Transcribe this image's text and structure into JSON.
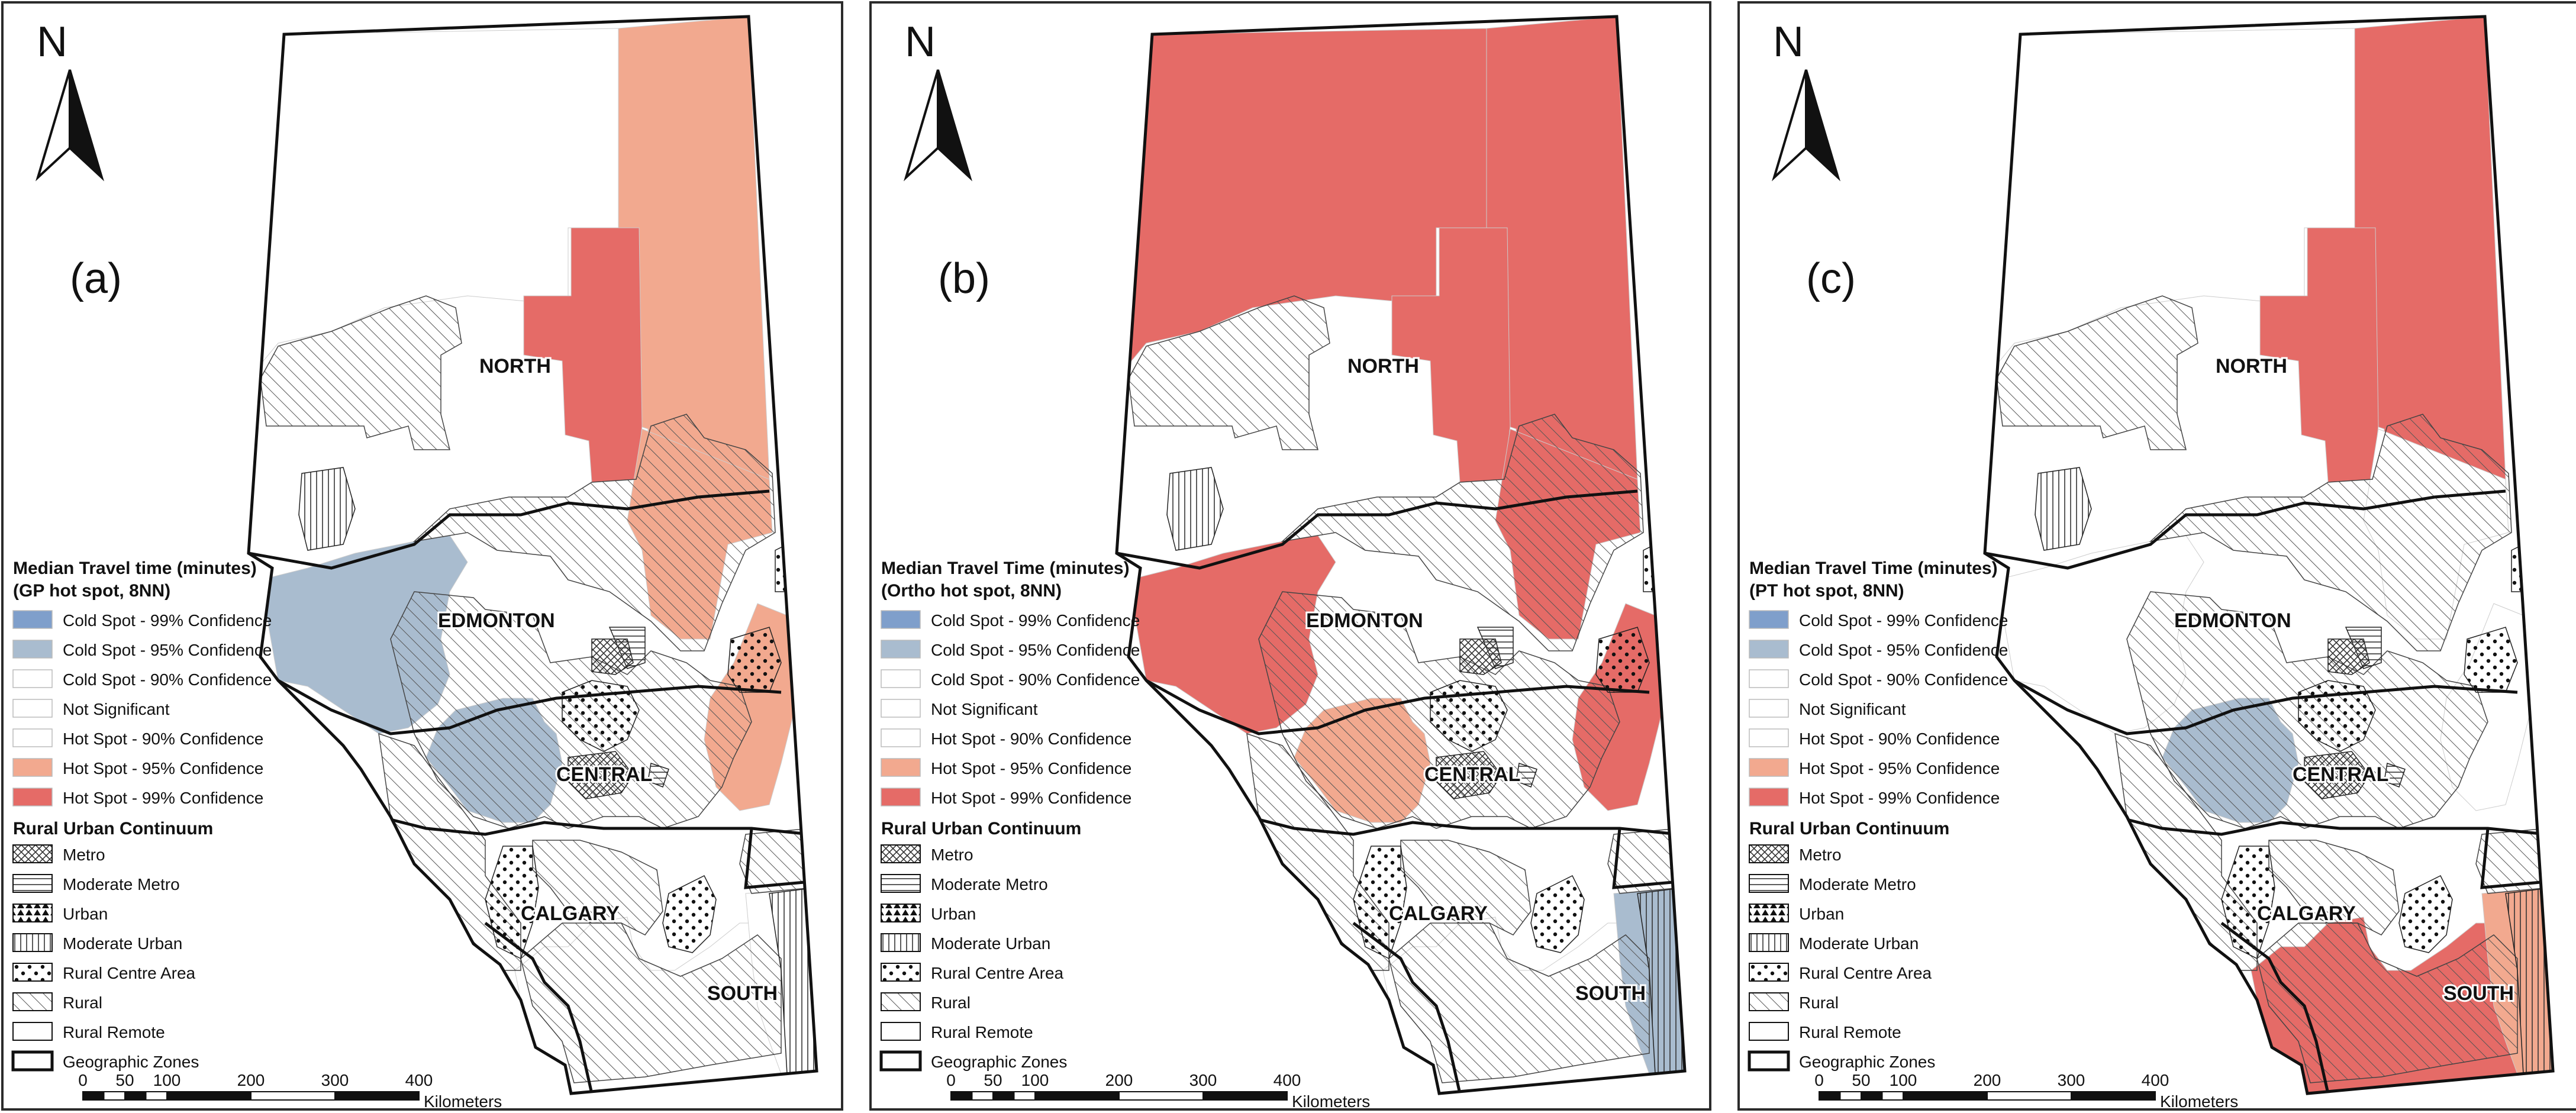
{
  "colors": {
    "cold99": "#7f9fcb",
    "cold95": "#a9bccf",
    "cold90": "#ffffff",
    "notsig": "#ffffff",
    "hot90": "#ffffff",
    "hot95": "#f2a98f",
    "hot99": "#e56b67",
    "rural_hatch": "#555555",
    "outline": "#111111",
    "panel_border": "#2b2b2b"
  },
  "panels": [
    {
      "label": "(a)",
      "north": "N",
      "zones": [
        "NORTH",
        "EDMONTON",
        "CENTRAL",
        "CALGARY",
        "SOUTH"
      ],
      "legend_title_1": "Median Travel time (minutes)",
      "legend_title_2": "(GP hot spot, 8NN)",
      "hotspot_items": [
        "Cold Spot - 99% Confidence",
        "Cold Spot - 95% Confidence",
        "Cold Spot - 90% Confidence",
        "Not Significant",
        "Hot Spot - 90% Confidence",
        "Hot Spot - 95% Confidence",
        "Hot Spot - 99% Confidence"
      ],
      "ruc_title": "Rural Urban Continuum",
      "ruc_items": [
        "Metro",
        "Moderate Metro",
        "Urban",
        "Moderate Urban",
        "Rural Centre Area",
        "Rural",
        "Rural Remote",
        "Geographic Zones"
      ],
      "scale_ticks": [
        "0",
        "50",
        "100",
        "200",
        "300",
        "400"
      ],
      "scale_unit": "Kilometers",
      "region_classes": {
        "NW": "notsig",
        "NE": "hot95",
        "NMID": "hot99",
        "NS": "hot95",
        "W": "cold95",
        "WC": "cold95",
        "CE": "hot95",
        "SE": "notsig",
        "SS": "notsig"
      }
    },
    {
      "label": "(b)",
      "north": "N",
      "zones": [
        "NORTH",
        "EDMONTON",
        "CENTRAL",
        "CALGARY",
        "SOUTH"
      ],
      "legend_title_1": "Median Travel Time (minutes)",
      "legend_title_2": "(Ortho hot spot, 8NN)",
      "hotspot_items": [
        "Cold Spot - 99% Confidence",
        "Cold Spot - 95% Confidence",
        "Cold Spot - 90% Confidence",
        "Not Significant",
        "Hot Spot - 90% Confidence",
        "Hot Spot - 95% Confidence",
        "Hot Spot - 99% Confidence"
      ],
      "ruc_title": "Rural Urban Continuum",
      "ruc_items": [
        "Metro",
        "Moderate Metro",
        "Urban",
        "Moderate Urban",
        "Rural Centre Area",
        "Rural",
        "Rural Remote",
        "Geographic Zones"
      ],
      "scale_ticks": [
        "0",
        "50",
        "100",
        "200",
        "300",
        "400"
      ],
      "scale_unit": "Kilometers",
      "region_classes": {
        "NW": "hot99",
        "NE": "hot99",
        "NMID": "hot99",
        "NS": "hot99",
        "W": "hot99",
        "WC": "hot95",
        "CE": "hot99",
        "SE": "notsig",
        "SS": "cold95"
      }
    },
    {
      "label": "(c)",
      "north": "N",
      "zones": [
        "NORTH",
        "EDMONTON",
        "CENTRAL",
        "CALGARY",
        "SOUTH"
      ],
      "legend_title_1": "Median Travel Time (minutes)",
      "legend_title_2": "(PT hot spot, 8NN)",
      "hotspot_items": [
        "Cold Spot - 99% Confidence",
        "Cold Spot - 95% Confidence",
        "Cold Spot - 90% Confidence",
        "Not Significant",
        "Hot Spot - 90% Confidence",
        "Hot Spot - 95% Confidence",
        "Hot Spot - 99% Confidence"
      ],
      "ruc_title": "Rural Urban Continuum",
      "ruc_items": [
        "Metro",
        "Moderate Metro",
        "Urban",
        "Moderate Urban",
        "Rural Centre Area",
        "Rural",
        "Rural Remote",
        "Geographic Zones"
      ],
      "scale_ticks": [
        "0",
        "50",
        "100",
        "200",
        "300",
        "400"
      ],
      "scale_unit": "Kilometers",
      "region_classes": {
        "NW": "notsig",
        "NE": "hot99",
        "NMID": "hot99",
        "NS": "notsig",
        "W": "notsig",
        "WC": "cold95",
        "CE": "notsig",
        "SE": "hot99",
        "SS": "hot95"
      }
    }
  ]
}
